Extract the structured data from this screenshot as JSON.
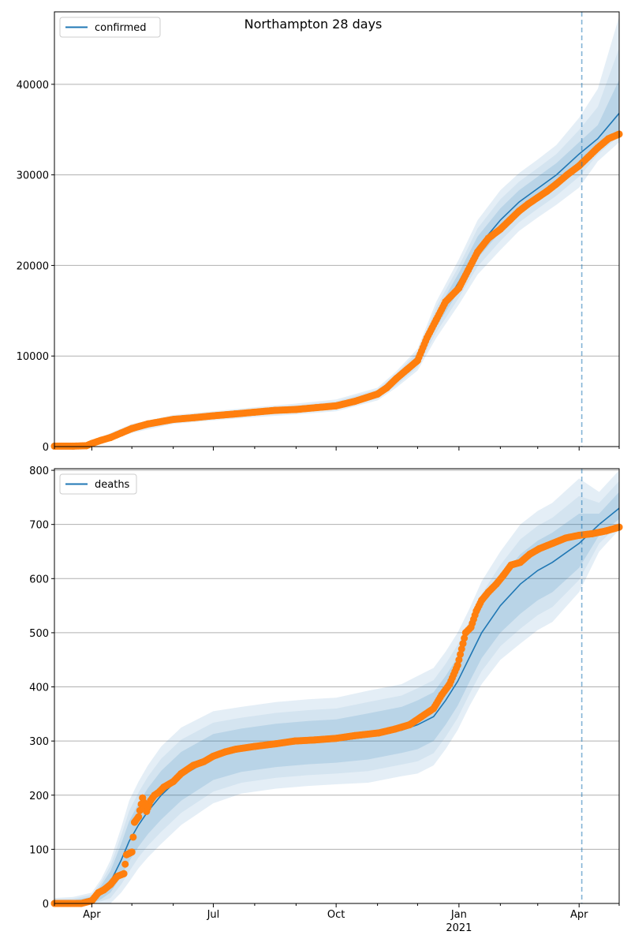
{
  "title": "Northampton 28 days",
  "colors": {
    "model": "#1f77b4",
    "observed": "#ff7f0e",
    "grid": "#b0b0b0",
    "band": "#1f77b4"
  },
  "chart_data": [
    {
      "type": "line",
      "legend": "confirmed",
      "legend_position": "top-left",
      "x_unit": "days since 2020-03-04",
      "xlim": [
        0,
        423
      ],
      "ylim": [
        0,
        48000
      ],
      "yticks": [
        0,
        10000,
        20000,
        30000,
        40000
      ],
      "ytick_labels": [
        "0",
        "10000",
        "20000",
        "30000",
        "40000"
      ],
      "grid": "y",
      "forecast_start_day": 395,
      "model": {
        "x": [
          0,
          14,
          28,
          42,
          58,
          89,
          119,
          150,
          181,
          211,
          242,
          256,
          272,
          286,
          303,
          317,
          334,
          348,
          362,
          376,
          393,
          407,
          423
        ],
        "y": [
          0,
          50,
          350,
          1100,
          2000,
          3000,
          3400,
          3800,
          4150,
          4550,
          5800,
          7400,
          9600,
          14000,
          18200,
          22000,
          25000,
          27000,
          28500,
          30000,
          32300,
          34000,
          36800
        ],
        "lo95": [
          0,
          0,
          100,
          700,
          1500,
          2500,
          2900,
          3250,
          3550,
          3900,
          5100,
          6500,
          8400,
          12000,
          15700,
          19000,
          21700,
          23800,
          25300,
          26700,
          28600,
          31500,
          33600
        ],
        "hi95": [
          100,
          200,
          600,
          1500,
          2500,
          3500,
          3900,
          4350,
          4750,
          5200,
          6500,
          8300,
          10800,
          16000,
          20700,
          25000,
          28300,
          30200,
          31700,
          33300,
          36300,
          39500,
          47500
        ],
        "lo50": [
          0,
          20,
          250,
          950,
          1800,
          2800,
          3200,
          3600,
          3950,
          4300,
          5500,
          7000,
          9100,
          13200,
          17200,
          20800,
          23700,
          25700,
          27200,
          28700,
          31000,
          33000,
          35000
        ],
        "hi50": [
          50,
          100,
          450,
          1250,
          2200,
          3200,
          3600,
          4000,
          4350,
          4800,
          6100,
          7800,
          10100,
          14800,
          19200,
          23200,
          26300,
          28300,
          29800,
          31300,
          33600,
          35500,
          40500
        ]
      },
      "observed": {
        "x": [
          0,
          14,
          24,
          28,
          35,
          42,
          50,
          58,
          70,
          89,
          105,
          119,
          135,
          150,
          165,
          181,
          196,
          211,
          225,
          242,
          249,
          256,
          264,
          272,
          279,
          286,
          293,
          303,
          310,
          317,
          325,
          334,
          341,
          348,
          355,
          362,
          369,
          376,
          384,
          393,
          400,
          407,
          415,
          423
        ],
        "y": [
          50,
          50,
          100,
          350,
          700,
          1000,
          1500,
          2000,
          2500,
          3000,
          3200,
          3400,
          3600,
          3800,
          4000,
          4100,
          4300,
          4500,
          5000,
          5800,
          6500,
          7500,
          8500,
          9500,
          12000,
          14000,
          16000,
          17500,
          19500,
          21500,
          23000,
          24000,
          25000,
          26000,
          26800,
          27500,
          28200,
          29000,
          30000,
          31000,
          32000,
          33000,
          34000,
          34500
        ]
      }
    },
    {
      "type": "line",
      "legend": "deaths",
      "legend_position": "top-left",
      "x_unit": "days since 2020-03-04",
      "xlim": [
        0,
        423
      ],
      "ylim": [
        0,
        803
      ],
      "yticks": [
        0,
        100,
        200,
        300,
        400,
        500,
        600,
        700,
        800
      ],
      "ytick_labels": [
        "0",
        "100",
        "200",
        "300",
        "400",
        "500",
        "600",
        "700",
        "800"
      ],
      "grid": "y",
      "forecast_start_day": 395,
      "xticks": [
        28,
        119,
        211,
        303,
        393
      ],
      "xtick_labels": [
        "Apr",
        "Jul",
        "Oct",
        "Jan",
        "Apr"
      ],
      "xtick_sublabel": "2021",
      "minor_xticks": [
        0,
        58,
        89,
        150,
        181,
        242,
        272,
        334,
        362,
        423
      ],
      "model": {
        "x": [
          0,
          14,
          28,
          35,
          42,
          50,
          56,
          63,
          70,
          80,
          95,
          119,
          140,
          166,
          190,
          211,
          235,
          260,
          272,
          284,
          293,
          302,
          311,
          320,
          334,
          349,
          362,
          373,
          393,
          408,
          423
        ],
        "y": [
          0,
          0,
          5,
          20,
          40,
          80,
          115,
          145,
          170,
          200,
          235,
          270,
          283,
          292,
          297,
          300,
          308,
          320,
          330,
          345,
          375,
          410,
          455,
          500,
          550,
          590,
          615,
          630,
          665,
          700,
          730
        ],
        "lo95": [
          0,
          0,
          0,
          0,
          0,
          20,
          40,
          65,
          85,
          110,
          145,
          185,
          203,
          212,
          217,
          220,
          223,
          235,
          240,
          255,
          285,
          320,
          365,
          405,
          450,
          480,
          505,
          520,
          575,
          650,
          690
        ],
        "hi95": [
          10,
          12,
          20,
          45,
          80,
          140,
          190,
          225,
          255,
          290,
          325,
          355,
          363,
          372,
          377,
          380,
          393,
          405,
          420,
          435,
          465,
          500,
          545,
          595,
          650,
          700,
          725,
          740,
          785,
          760,
          800
        ],
        "lo50": [
          0,
          0,
          0,
          8,
          20,
          50,
          78,
          105,
          128,
          155,
          190,
          228,
          243,
          252,
          257,
          260,
          266,
          278,
          285,
          300,
          330,
          365,
          410,
          453,
          500,
          535,
          560,
          575,
          620,
          680,
          710
        ],
        "hi50": [
          5,
          6,
          12,
          33,
          60,
          110,
          152,
          185,
          213,
          245,
          280,
          313,
          323,
          332,
          337,
          340,
          351,
          363,
          375,
          390,
          420,
          455,
          500,
          548,
          600,
          645,
          670,
          685,
          720,
          720,
          760
        ]
      },
      "observed": {
        "x": [
          0,
          20,
          28,
          33,
          37,
          42,
          47,
          52,
          54,
          58,
          60,
          63,
          66,
          69,
          72,
          75,
          78,
          82,
          89,
          95,
          104,
          112,
          119,
          128,
          136,
          150,
          166,
          180,
          195,
          211,
          225,
          243,
          255,
          266,
          275,
          284,
          290,
          296,
          302,
          306,
          308,
          312,
          316,
          320,
          325,
          331,
          336,
          342,
          349,
          356,
          363,
          373,
          383,
          393,
          403,
          413,
          423
        ],
        "y": [
          0,
          0,
          5,
          20,
          25,
          35,
          50,
          55,
          90,
          95,
          150,
          160,
          195,
          170,
          190,
          200,
          205,
          215,
          225,
          240,
          255,
          262,
          272,
          280,
          285,
          290,
          295,
          300,
          302,
          305,
          310,
          315,
          322,
          330,
          345,
          360,
          385,
          405,
          440,
          480,
          500,
          510,
          540,
          560,
          575,
          590,
          605,
          625,
          630,
          645,
          655,
          665,
          675,
          680,
          683,
          688,
          695
        ]
      }
    }
  ]
}
